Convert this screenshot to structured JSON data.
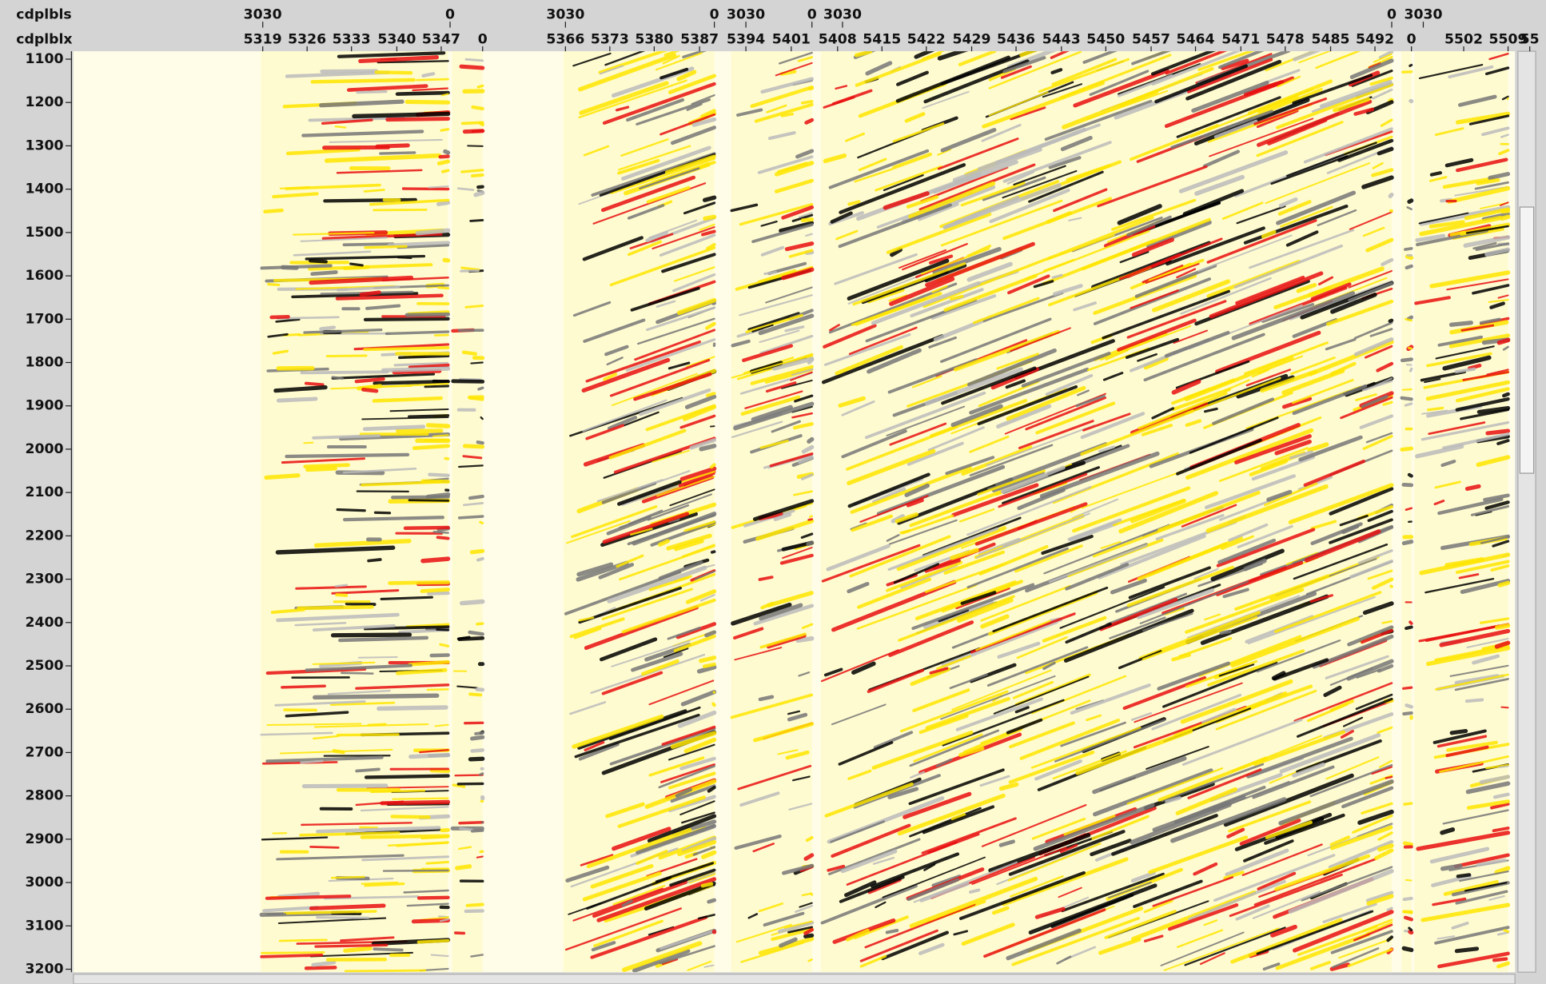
{
  "header": {
    "row_labels": [
      "cdplbls",
      "cdplblx"
    ],
    "cdplbls": [
      "3030",
      "0",
      "3030",
      "0",
      "3030",
      "0",
      "3030",
      "0",
      "3030"
    ],
    "cdplblx": [
      "5319",
      "5326",
      "5333",
      "5340",
      "5347",
      "0",
      "5366",
      "5373",
      "5380",
      "5387",
      "5394",
      "5401",
      "5408",
      "5415",
      "5422",
      "5429",
      "5436",
      "5443",
      "5450",
      "5457",
      "5464",
      "5471",
      "5478",
      "5485",
      "5492",
      "0",
      "5502",
      "5509",
      "55"
    ]
  },
  "y_axis": {
    "ticks": [
      1100,
      1200,
      1300,
      1400,
      1500,
      1600,
      1700,
      1800,
      1900,
      2000,
      2100,
      2200,
      2300,
      2400,
      2500,
      2600,
      2700,
      2800,
      2900,
      3000,
      3100,
      3200
    ]
  }
}
